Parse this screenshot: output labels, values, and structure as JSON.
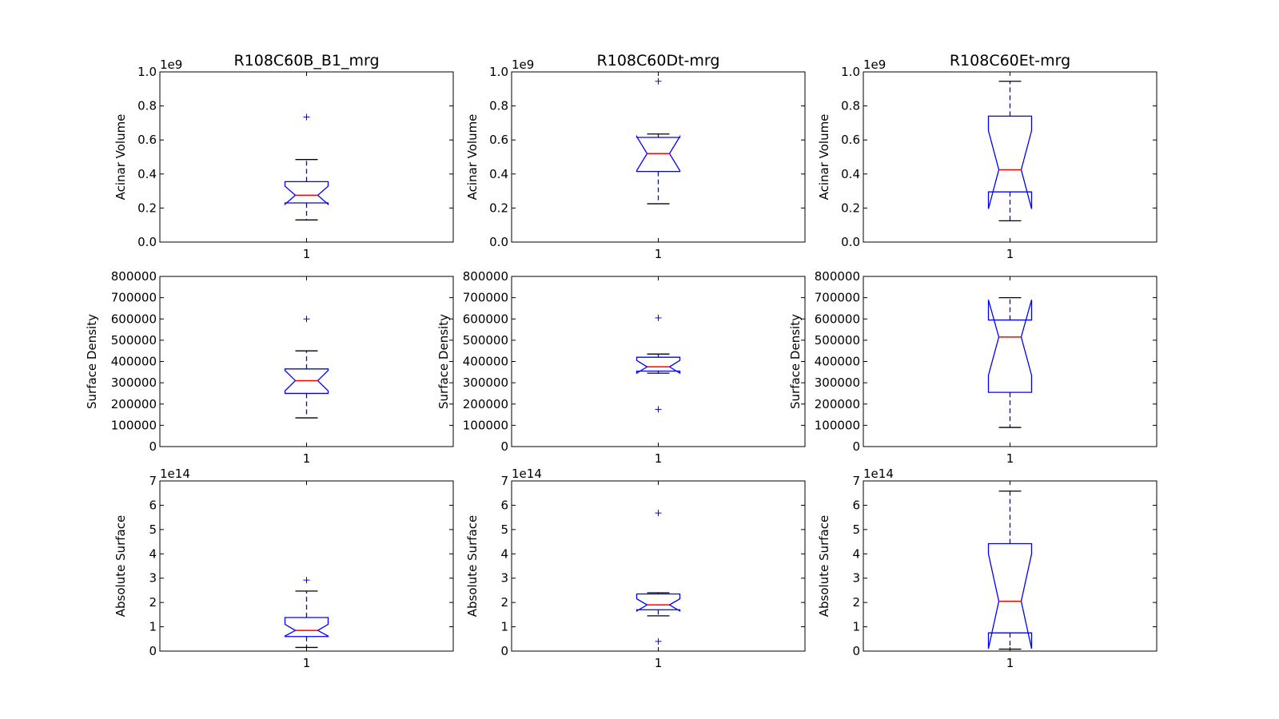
{
  "chart_data": [
    {
      "type": "box",
      "title": "R108C60B_B1_mrg",
      "ylabel": "Acinar Volume",
      "offset_text": "1e9",
      "ylim": [
        0,
        1.0
      ],
      "yticks": [
        0,
        0.2,
        0.4,
        0.6,
        0.8,
        1.0
      ],
      "ytick_labels": [
        "0.0",
        "0.2",
        "0.4",
        "0.6",
        "0.8",
        "1.0"
      ],
      "categories": [
        "1"
      ],
      "box": {
        "whisker_low": 0.13,
        "q1": 0.23,
        "median": 0.275,
        "q3": 0.355,
        "whisker_high": 0.485,
        "notch_low": 0.222,
        "notch_high": 0.328,
        "outliers": [
          0.735
        ]
      }
    },
    {
      "type": "box",
      "title": "R108C60Dt-mrg",
      "ylabel": "Acinar Volume",
      "offset_text": "1e9",
      "ylim": [
        0,
        1.0
      ],
      "yticks": [
        0,
        0.2,
        0.4,
        0.6,
        0.8,
        1.0
      ],
      "ytick_labels": [
        "0.0",
        "0.2",
        "0.4",
        "0.6",
        "0.8",
        "1.0"
      ],
      "categories": [
        "1"
      ],
      "box": {
        "whisker_low": 0.225,
        "q1": 0.415,
        "median": 0.52,
        "q3": 0.615,
        "whisker_high": 0.635,
        "notch_low": 0.42,
        "notch_high": 0.62,
        "outliers": [
          0.945
        ]
      }
    },
    {
      "type": "box",
      "title": "R108C60Et-mrg",
      "ylabel": "Acinar Volume",
      "offset_text": "1e9",
      "ylim": [
        0,
        1.0
      ],
      "yticks": [
        0,
        0.2,
        0.4,
        0.6,
        0.8,
        1.0
      ],
      "ytick_labels": [
        "0.0",
        "0.2",
        "0.4",
        "0.6",
        "0.8",
        "1.0"
      ],
      "categories": [
        "1"
      ],
      "box": {
        "whisker_low": 0.125,
        "q1": 0.295,
        "median": 0.425,
        "q3": 0.74,
        "whisker_high": 0.945,
        "notch_low": 0.195,
        "notch_high": 0.655,
        "outliers": []
      }
    },
    {
      "type": "box",
      "title": "",
      "ylabel": "Surface Density",
      "offset_text": "",
      "ylim": [
        0,
        800000
      ],
      "yticks": [
        0,
        100000,
        200000,
        300000,
        400000,
        500000,
        600000,
        700000,
        800000
      ],
      "ytick_labels": [
        "0",
        "100000",
        "200000",
        "300000",
        "400000",
        "500000",
        "600000",
        "700000",
        "800000"
      ],
      "categories": [
        "1"
      ],
      "box": {
        "whisker_low": 135000,
        "q1": 250000,
        "median": 310000,
        "q3": 365000,
        "whisker_high": 450000,
        "notch_low": 262000,
        "notch_high": 358000,
        "outliers": [
          600000
        ]
      }
    },
    {
      "type": "box",
      "title": "",
      "ylabel": "Surface Density",
      "offset_text": "",
      "ylim": [
        0,
        800000
      ],
      "yticks": [
        0,
        100000,
        200000,
        300000,
        400000,
        500000,
        600000,
        700000,
        800000
      ],
      "ytick_labels": [
        "0",
        "100000",
        "200000",
        "300000",
        "400000",
        "500000",
        "600000",
        "700000",
        "800000"
      ],
      "categories": [
        "1"
      ],
      "box": {
        "whisker_low": 345000,
        "q1": 355000,
        "median": 375000,
        "q3": 420000,
        "whisker_high": 435000,
        "notch_low": 345000,
        "notch_high": 405000,
        "outliers": [
          605000,
          175000
        ]
      }
    },
    {
      "type": "box",
      "title": "",
      "ylabel": "Surface Density",
      "offset_text": "",
      "ylim": [
        0,
        800000
      ],
      "yticks": [
        0,
        100000,
        200000,
        300000,
        400000,
        500000,
        600000,
        700000,
        800000
      ],
      "ytick_labels": [
        "0",
        "100000",
        "200000",
        "300000",
        "400000",
        "500000",
        "600000",
        "700000",
        "800000"
      ],
      "categories": [
        "1"
      ],
      "box": {
        "whisker_low": 90000,
        "q1": 255000,
        "median": 515000,
        "q3": 595000,
        "whisker_high": 700000,
        "notch_low": 335000,
        "notch_high": 690000,
        "outliers": []
      }
    },
    {
      "type": "box",
      "title": "",
      "ylabel": "Absolute Surface",
      "offset_text": "1e14",
      "ylim": [
        0,
        7
      ],
      "yticks": [
        0,
        1,
        2,
        3,
        4,
        5,
        6,
        7
      ],
      "ytick_labels": [
        "0",
        "1",
        "2",
        "3",
        "4",
        "5",
        "6",
        "7"
      ],
      "categories": [
        "1"
      ],
      "box": {
        "whisker_low": 0.15,
        "q1": 0.6,
        "median": 0.85,
        "q3": 1.38,
        "whisker_high": 2.47,
        "notch_low": 0.62,
        "notch_high": 1.1,
        "outliers": [
          2.92
        ]
      }
    },
    {
      "type": "box",
      "title": "",
      "ylabel": "Absolute Surface",
      "offset_text": "1e14",
      "ylim": [
        0,
        7
      ],
      "yticks": [
        0,
        1,
        2,
        3,
        4,
        5,
        6,
        7
      ],
      "ytick_labels": [
        "0",
        "1",
        "2",
        "3",
        "4",
        "5",
        "6",
        "7"
      ],
      "categories": [
        "1"
      ],
      "box": {
        "whisker_low": 1.45,
        "q1": 1.7,
        "median": 1.9,
        "q3": 2.35,
        "whisker_high": 2.4,
        "notch_low": 1.65,
        "notch_high": 2.15,
        "outliers": [
          5.68,
          0.4
        ]
      }
    },
    {
      "type": "box",
      "title": "",
      "ylabel": "Absolute Surface",
      "offset_text": "1e14",
      "ylim": [
        0,
        7
      ],
      "yticks": [
        0,
        1,
        2,
        3,
        4,
        5,
        6,
        7
      ],
      "ytick_labels": [
        "0",
        "1",
        "2",
        "3",
        "4",
        "5",
        "6",
        "7"
      ],
      "categories": [
        "1"
      ],
      "box": {
        "whisker_low": 0.08,
        "q1": 0.75,
        "median": 2.05,
        "q3": 4.42,
        "whisker_high": 6.58,
        "notch_low": 0.1,
        "notch_high": 4.0,
        "outliers": []
      }
    }
  ],
  "colors": {
    "box": "#0000ff",
    "median": "#ff0000",
    "whisker_cap": "#000000",
    "flier": "#0000ff",
    "axes": "#000000"
  }
}
